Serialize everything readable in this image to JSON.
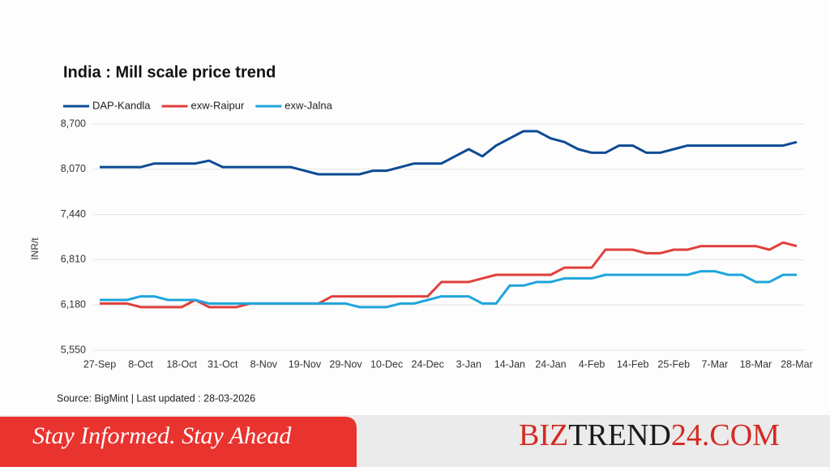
{
  "chart_data": {
    "type": "line",
    "title": "India : Mill scale price trend",
    "ylabel": "INR/t",
    "source": "Source: BigMint | Last updated : 28-03-2026",
    "categories": [
      "27-Sep",
      null,
      null,
      "8-Oct",
      null,
      null,
      "18-Oct",
      null,
      null,
      "31-Oct",
      null,
      null,
      "8-Nov",
      null,
      null,
      "19-Nov",
      null,
      null,
      "29-Nov",
      null,
      null,
      "10-Dec",
      null,
      null,
      "24-Dec",
      null,
      null,
      "3-Jan",
      null,
      null,
      "14-Jan",
      null,
      null,
      "24-Jan",
      null,
      null,
      "4-Feb",
      null,
      null,
      "14-Feb",
      null,
      null,
      "25-Feb",
      null,
      null,
      "7-Mar",
      null,
      null,
      "18-Mar",
      null,
      null,
      "28-Mar"
    ],
    "series": [
      {
        "name": "DAP-Kandla",
        "color": "#0d4a94",
        "values": [
          8100,
          8100,
          8100,
          8100,
          8150,
          8150,
          8150,
          8150,
          8190,
          8100,
          8100,
          8100,
          8100,
          8100,
          8100,
          8050,
          8000,
          8000,
          8000,
          8000,
          8050,
          8050,
          8100,
          8150,
          8150,
          8150,
          8250,
          8350,
          8250,
          8400,
          8500,
          8600,
          8600,
          8500,
          8450,
          8350,
          8300,
          8300,
          8400,
          8400,
          8300,
          8300,
          8350,
          8400,
          8400,
          8400,
          8400,
          8400,
          8400,
          8400,
          8400,
          8450
        ]
      },
      {
        "name": "exw-Raipur",
        "color": "#e0403c",
        "values": [
          6200,
          6200,
          6200,
          6150,
          6150,
          6150,
          6150,
          6250,
          6150,
          6150,
          6150,
          6200,
          6200,
          6200,
          6200,
          6200,
          6200,
          6300,
          6300,
          6300,
          6300,
          6300,
          6300,
          6300,
          6300,
          6500,
          6500,
          6500,
          6550,
          6600,
          6600,
          6600,
          6600,
          6600,
          6700,
          6700,
          6700,
          6950,
          6950,
          6950,
          6900,
          6900,
          6950,
          6950,
          7000,
          7000,
          7000,
          7000,
          7000,
          6950,
          7050,
          7000
        ]
      },
      {
        "name": "exw-Jalna",
        "color": "#1ea5dc",
        "values": [
          6250,
          6250,
          6250,
          6300,
          6300,
          6250,
          6250,
          6250,
          6200,
          6200,
          6200,
          6200,
          6200,
          6200,
          6200,
          6200,
          6200,
          6200,
          6200,
          6150,
          6150,
          6150,
          6200,
          6200,
          6250,
          6300,
          6300,
          6300,
          6200,
          6200,
          6450,
          6450,
          6500,
          6500,
          6550,
          6550,
          6550,
          6600,
          6600,
          6600,
          6600,
          6600,
          6600,
          6600,
          6650,
          6650,
          6600,
          6600,
          6500,
          6500,
          6600,
          6600
        ]
      }
    ],
    "ylim": [
      5550,
      8700
    ],
    "yticks": [
      {
        "value": 5550,
        "label": "5,550"
      },
      {
        "value": 6180,
        "label": "6,180"
      },
      {
        "value": 6810,
        "label": "6,810"
      },
      {
        "value": 7440,
        "label": "7,440"
      },
      {
        "value": 8070,
        "label": "8,070"
      },
      {
        "value": 8700,
        "label": "8,700"
      }
    ],
    "grid": true,
    "legend": "top-left"
  },
  "banner": {
    "tagline": "Stay Informed. Stay Ahead",
    "brand": [
      "BIZ",
      "TREND",
      "24",
      ".COM"
    ]
  }
}
